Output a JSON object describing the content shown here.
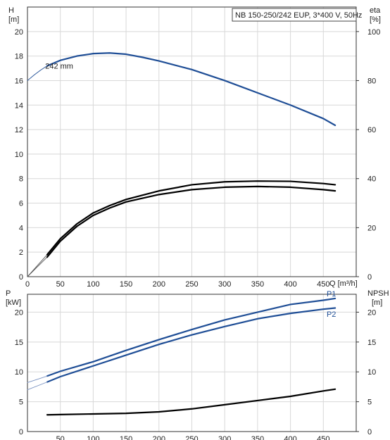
{
  "chart_data": [
    {
      "type": "line",
      "panel": "head-efficiency",
      "title": "NB 150-250/242 EUP, 3*400 V, 50Hz",
      "xlabel": "Q [m³/h]",
      "ylabel_left": "H\n[m]",
      "ylabel_right": "eta\n[%]",
      "xlim": [
        0,
        500
      ],
      "x_ticks": [
        0,
        50,
        100,
        150,
        200,
        250,
        300,
        350,
        400,
        450
      ],
      "ylim_left": [
        0,
        22
      ],
      "y_ticks_left": [
        0,
        2,
        4,
        6,
        8,
        10,
        12,
        14,
        16,
        18,
        20
      ],
      "ylim_right": [
        0,
        110
      ],
      "y_ticks_right": [
        0,
        20,
        40,
        60,
        80,
        100
      ],
      "grid": true,
      "annotations": [
        {
          "text": "242 mm",
          "x": 27,
          "y": 17.2
        }
      ],
      "series": [
        {
          "role": "head-extrapolated",
          "color": "#1f4e96",
          "axis": "left",
          "x": [
            0,
            10,
            20,
            30
          ],
          "y": [
            16.0,
            16.45,
            16.85,
            17.2
          ]
        },
        {
          "role": "head",
          "color": "#1f4e96",
          "axis": "left",
          "x": [
            30,
            50,
            75,
            100,
            125,
            150,
            175,
            200,
            250,
            300,
            350,
            400,
            450,
            468
          ],
          "y": [
            17.2,
            17.65,
            18.0,
            18.2,
            18.25,
            18.15,
            17.9,
            17.6,
            16.9,
            16.0,
            15.0,
            14.0,
            12.9,
            12.35
          ]
        },
        {
          "role": "efficiency-extrapolated-upper",
          "color": "#555555",
          "axis": "right",
          "x": [
            0,
            15,
            30
          ],
          "y": [
            0,
            4.5,
            9.0
          ]
        },
        {
          "role": "efficiency-upper",
          "color": "#000000",
          "axis": "right",
          "x": [
            30,
            50,
            75,
            100,
            125,
            150,
            200,
            250,
            300,
            350,
            400,
            450,
            468
          ],
          "y": [
            9.0,
            15.5,
            21.5,
            26.0,
            29.0,
            31.5,
            35.0,
            37.5,
            38.7,
            39.0,
            38.9,
            38.0,
            37.5
          ]
        },
        {
          "role": "efficiency-extrapolated-lower",
          "color": "#555555",
          "axis": "right",
          "x": [
            0,
            15,
            30
          ],
          "y": [
            0,
            4.0,
            8.0
          ]
        },
        {
          "role": "efficiency-lower",
          "color": "#000000",
          "axis": "right",
          "x": [
            30,
            50,
            75,
            100,
            125,
            150,
            200,
            250,
            300,
            350,
            400,
            450,
            468
          ],
          "y": [
            8.0,
            14.5,
            20.5,
            25.0,
            28.0,
            30.5,
            33.5,
            35.5,
            36.5,
            36.8,
            36.5,
            35.5,
            35.0
          ]
        }
      ]
    },
    {
      "type": "line",
      "panel": "power-npsh",
      "xlabel": "",
      "ylabel_left": "P\n[kW]",
      "ylabel_right": "NPSH\n[m]",
      "xlim": [
        0,
        500
      ],
      "x_ticks": [
        50,
        100,
        150,
        200,
        250,
        300,
        350,
        400,
        450
      ],
      "ylim_left": [
        0,
        23
      ],
      "y_ticks_left": [
        0,
        5,
        10,
        15,
        20
      ],
      "ylim_right": [
        0,
        23
      ],
      "y_ticks_right": [
        0,
        5,
        10,
        15,
        20
      ],
      "grid": true,
      "series": [
        {
          "name": "P1",
          "color": "#1f4e96",
          "axis": "left",
          "x": [
            30,
            50,
            100,
            150,
            200,
            250,
            300,
            350,
            400,
            450,
            468
          ],
          "y": [
            9.3,
            10.1,
            11.7,
            13.6,
            15.4,
            17.1,
            18.7,
            20.0,
            21.3,
            22.0,
            22.3
          ],
          "label_pos": [
            455,
            23.1
          ]
        },
        {
          "name": "P2",
          "color": "#1f4e96",
          "axis": "left",
          "x": [
            30,
            50,
            100,
            150,
            200,
            250,
            300,
            350,
            400,
            450,
            468
          ],
          "y": [
            8.3,
            9.2,
            11.0,
            12.8,
            14.6,
            16.2,
            17.6,
            18.9,
            19.8,
            20.5,
            20.7
          ],
          "label_pos": [
            455,
            19.7
          ]
        },
        {
          "role": "power-extrapolated",
          "color": "#7a93c2",
          "axis": "left",
          "x": [
            0,
            30
          ],
          "y": [
            8.2,
            9.3
          ]
        },
        {
          "role": "power-extrapolated-2",
          "color": "#7a93c2",
          "axis": "left",
          "x": [
            0,
            30
          ],
          "y": [
            7.0,
            8.3
          ]
        },
        {
          "role": "npsh",
          "color": "#000000",
          "axis": "right",
          "x": [
            30,
            50,
            100,
            150,
            200,
            250,
            300,
            350,
            400,
            450,
            468
          ],
          "y": [
            2.8,
            2.85,
            2.95,
            3.05,
            3.3,
            3.8,
            4.5,
            5.2,
            5.9,
            6.8,
            7.1
          ]
        }
      ]
    }
  ]
}
